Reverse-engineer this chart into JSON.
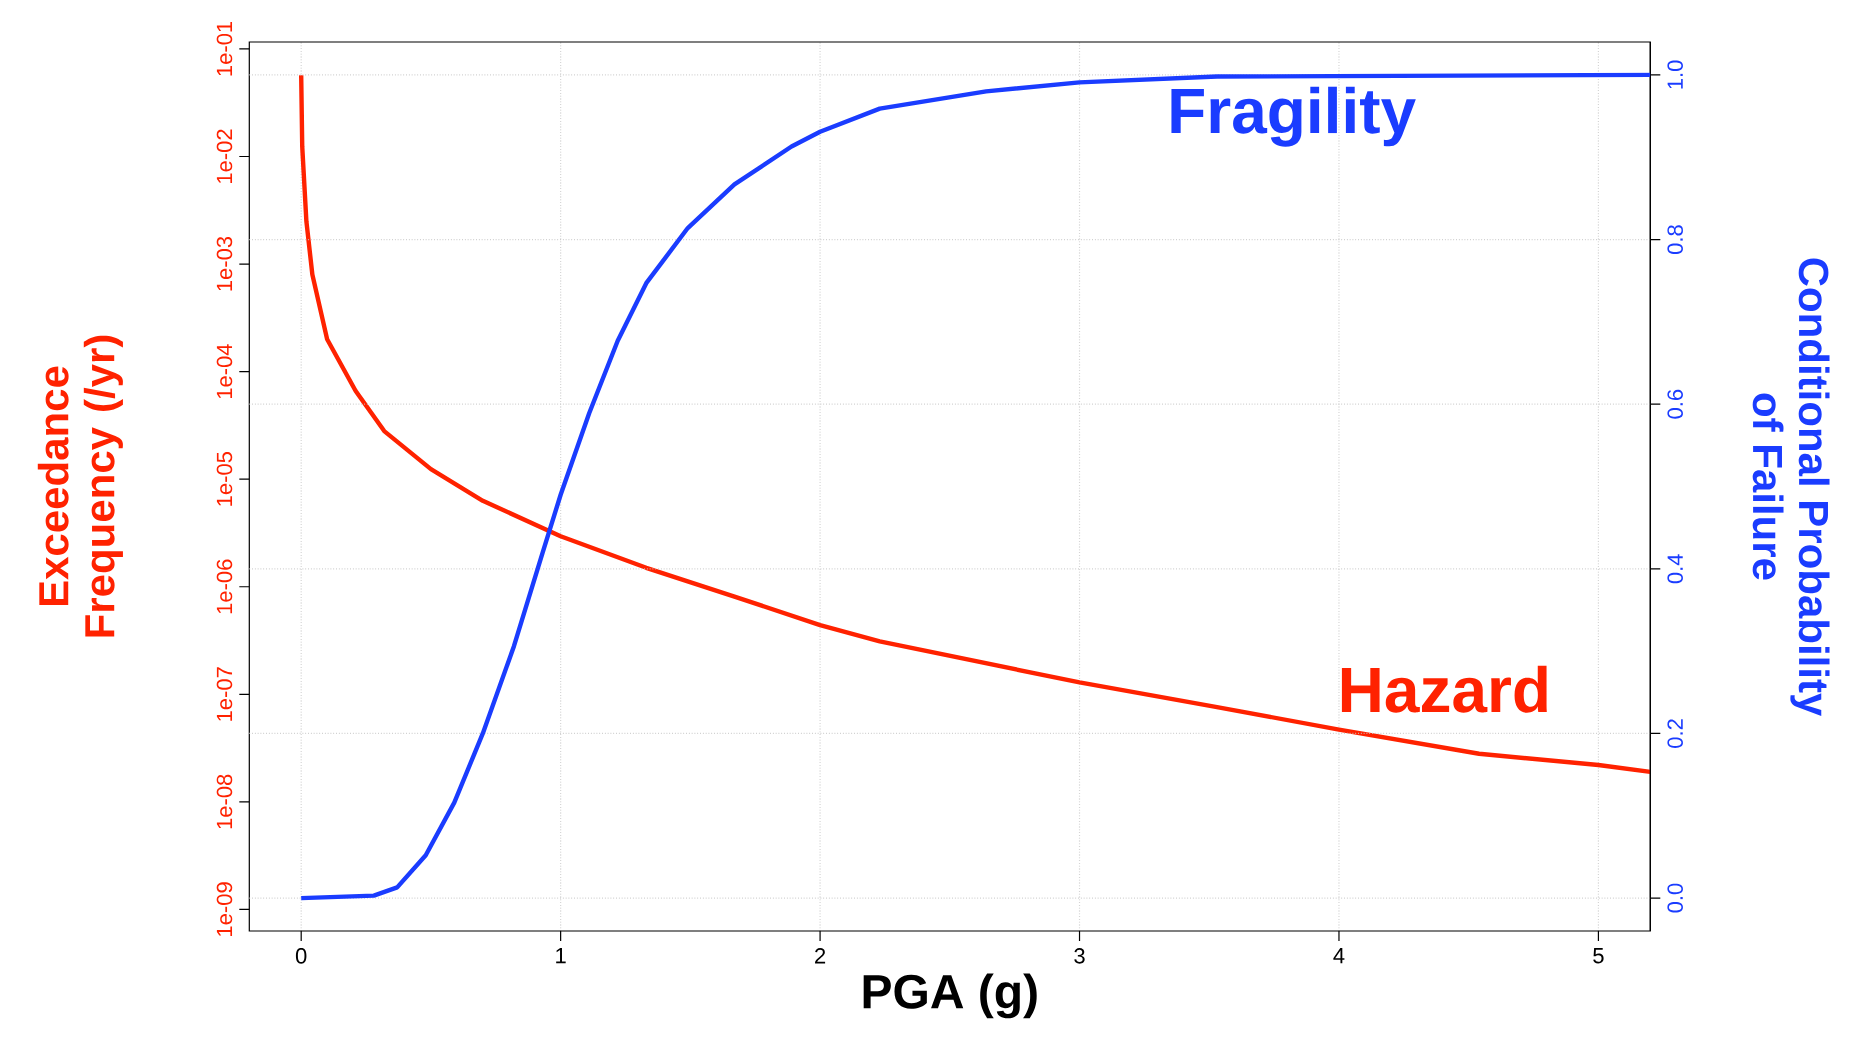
{
  "chart_data": {
    "type": "line",
    "xlabel": "PGA (g)",
    "ylabel": "Exceedance Frequency (/yr)",
    "y2label": "Conditional Probability of Failure",
    "log": "y",
    "grid": true,
    "legend": false,
    "marker": "none",
    "line_style": "solid",
    "xlim": [
      -0.2,
      5.2
    ],
    "xticks": [
      0,
      1,
      2,
      3,
      4,
      5
    ],
    "ylim": [
      6.3e-10,
      0.116
    ],
    "yticks": [
      {
        "value": 0.1,
        "label": "1e-01"
      },
      {
        "value": 0.01,
        "label": "1e-02"
      },
      {
        "value": 0.001,
        "label": "1e-03"
      },
      {
        "value": 0.0001,
        "label": "1e-04"
      },
      {
        "value": 1e-05,
        "label": "1e-05"
      },
      {
        "value": 1e-06,
        "label": "1e-06"
      },
      {
        "value": 1e-07,
        "label": "1e-07"
      },
      {
        "value": 1e-08,
        "label": "1e-08"
      },
      {
        "value": 1e-09,
        "label": "1e-09"
      }
    ],
    "y2lim": [
      -0.04,
      1.04
    ],
    "y2ticks": [
      {
        "value": 0,
        "label": "0.0"
      },
      {
        "value": 0.2,
        "label": "0.2"
      },
      {
        "value": 0.4,
        "label": "0.4"
      },
      {
        "value": 0.6,
        "label": "0.6"
      },
      {
        "value": 0.8,
        "label": "0.8"
      },
      {
        "value": 1,
        "label": "1.0"
      }
    ],
    "series": [
      {
        "name": "Hazard",
        "color": "#ff2200",
        "x": [
          0,
          0.004,
          0.02,
          0.043,
          0.1,
          0.21,
          0.32,
          0.5,
          0.7,
          1.0,
          1.33,
          1.67,
          2.0,
          2.23,
          3.0,
          3.53,
          4.0,
          4.54,
          5.0,
          5.2
        ],
        "values": [
          0.057,
          0.0124,
          0.0025,
          0.0008,
          0.0002,
          6.6e-05,
          2.8e-05,
          1.24e-05,
          6.3e-06,
          2.95e-06,
          1.5e-06,
          8.1e-07,
          4.4e-07,
          3.1e-07,
          1.29e-07,
          7.6e-08,
          4.7e-08,
          2.8e-08,
          2.2e-08,
          1.9e-08
        ]
      },
      {
        "name": "Fragility",
        "color": "#1a3cff",
        "axis": "y2",
        "x": [
          0,
          0.28,
          0.37,
          0.48,
          0.59,
          0.7,
          0.82,
          0.93,
          1.0,
          1.11,
          1.22,
          1.33,
          1.49,
          1.67,
          1.89,
          2.0,
          2.23,
          2.64,
          3.0,
          3.53,
          5.2
        ],
        "values": [
          0,
          0.003,
          0.013,
          0.052,
          0.116,
          0.2,
          0.306,
          0.419,
          0.49,
          0.589,
          0.677,
          0.747,
          0.814,
          0.867,
          0.913,
          0.931,
          0.959,
          0.98,
          0.991,
          0.998,
          1.0
        ]
      }
    ]
  }
}
